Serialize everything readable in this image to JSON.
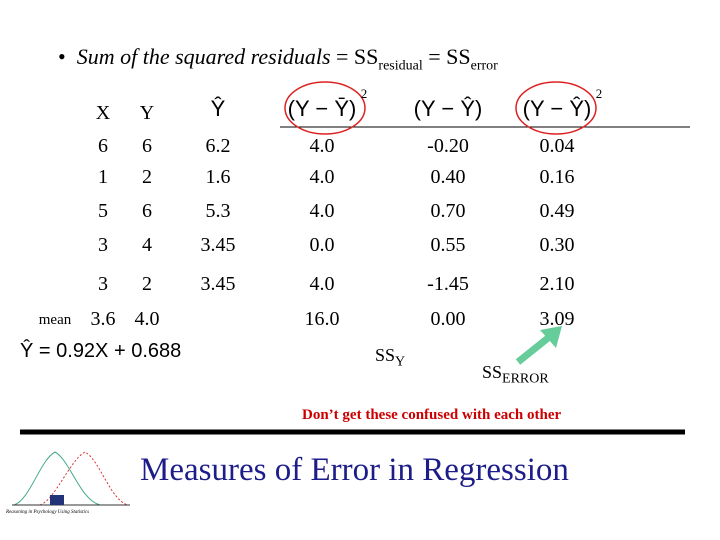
{
  "bullet": {
    "text": "Sum of the squared residuals",
    "eq1": " = SS",
    "sub1": "residual",
    "eq2": " = SS",
    "sub2": "error"
  },
  "table": {
    "headers": [
      "X",
      "Y",
      "Ŷ",
      "(Y − Ȳ)",
      "(Y − Ŷ)",
      "(Y − Ŷ)"
    ],
    "header_exponents": {
      "3": "2",
      "5": "2"
    },
    "rows": [
      [
        "6",
        "6",
        "6.2",
        "4.0",
        "-0.20",
        "0.04"
      ],
      [
        "1",
        "2",
        "1.6",
        "4.0",
        "0.40",
        "0.16"
      ],
      [
        "5",
        "6",
        "5.3",
        "4.0",
        "0.70",
        "0.49"
      ],
      [
        "3",
        "4",
        "3.45",
        "0.0",
        "0.55",
        "0.30"
      ],
      [
        "3",
        "2",
        "3.45",
        "4.0",
        "-1.45",
        "2.10"
      ]
    ],
    "mean_label": "mean",
    "mean_row": [
      "3.6",
      "4.0",
      "",
      "16.0",
      "0.00",
      "3.09"
    ]
  },
  "equation": "Ŷ = 0.92X + 0.688",
  "ss_y": {
    "text": "SS",
    "sub": "Y"
  },
  "ss_error": {
    "text": "SS",
    "sub": "ERROR"
  },
  "note": "Don’t get these confused with each other",
  "title": "Measures of Error in Regression",
  "logo_caption": "Reasoning in Psychology Using Statistics"
}
